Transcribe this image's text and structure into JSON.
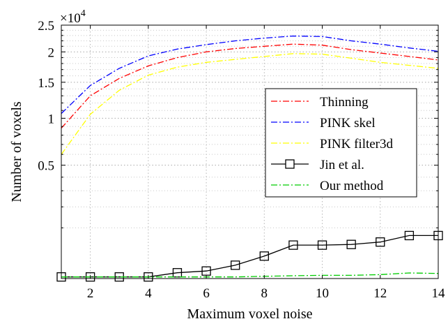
{
  "chart_data": {
    "type": "line",
    "xlabel": "Maximum voxel noise",
    "ylabel": "Number of voxels",
    "exponent_label": "×10",
    "exponent_power": "4",
    "xlim": [
      1,
      14
    ],
    "ylim": [
      0,
      2.5
    ],
    "y_scale": "sqrt",
    "xticks": [
      2,
      4,
      6,
      8,
      10,
      12,
      14
    ],
    "xtick_labels": [
      "2",
      "4",
      "6",
      "8",
      "10",
      "12",
      "14"
    ],
    "yticks": [
      0.5,
      1,
      1.5,
      2,
      2.5
    ],
    "ytick_labels": [
      "0.5",
      "1",
      "1.5",
      "2",
      "2.5"
    ],
    "y_minor_ticks": [
      0.1,
      0.2,
      0.3,
      0.4,
      0.6,
      0.7,
      0.8,
      0.9,
      1.1,
      1.2,
      1.3,
      1.4,
      1.6,
      1.7,
      1.8,
      1.9,
      2.1,
      2.2,
      2.3,
      2.4
    ],
    "grid": true,
    "legend_position": "right",
    "x": [
      1,
      2,
      3,
      4,
      5,
      6,
      7,
      8,
      9,
      10,
      11,
      12,
      13,
      14
    ],
    "series": [
      {
        "name": "Thinning",
        "color": "#ff0000",
        "dash": "dashdot",
        "marker": "none",
        "values": [
          0.88,
          1.3,
          1.56,
          1.76,
          1.9,
          2.0,
          2.06,
          2.1,
          2.14,
          2.12,
          2.04,
          1.98,
          1.92,
          1.86
        ]
      },
      {
        "name": "PINK skel",
        "color": "#0000ff",
        "dash": "dashdot",
        "marker": "none",
        "values": [
          1.06,
          1.45,
          1.72,
          1.93,
          2.05,
          2.13,
          2.2,
          2.25,
          2.29,
          2.28,
          2.2,
          2.14,
          2.07,
          2.01
        ]
      },
      {
        "name": "PINK filter3d",
        "color": "#ffff00",
        "dash": "dashdot",
        "marker": "none",
        "values": [
          0.6,
          1.05,
          1.38,
          1.61,
          1.74,
          1.82,
          1.87,
          1.92,
          1.97,
          1.96,
          1.89,
          1.82,
          1.77,
          1.72
        ]
      },
      {
        "name": "Jin et al.",
        "color": "#000000",
        "dash": "solid",
        "marker": "square",
        "values": [
          0.0001,
          0.0001,
          0.0001,
          0.0001,
          0.0013,
          0.0022,
          0.0069,
          0.0196,
          0.0435,
          0.0435,
          0.0452,
          0.0519,
          0.0719,
          0.0719
        ]
      },
      {
        "name": "Our method",
        "color": "#00cc00",
        "dash": "dashdot",
        "marker": "none",
        "values": [
          0.0001,
          0.0001,
          0.0001,
          0.0001,
          0.0001,
          0.0001,
          0.0001,
          0.0002,
          0.0003,
          0.0004,
          0.0004,
          0.0006,
          0.0012,
          0.001
        ]
      }
    ]
  }
}
